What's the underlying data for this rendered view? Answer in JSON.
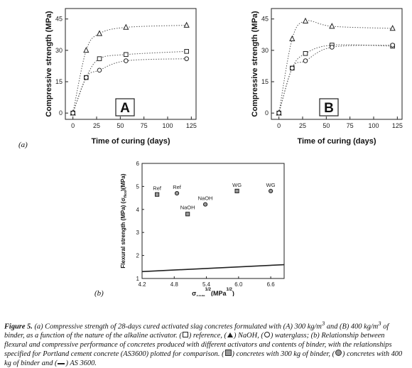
{
  "chart_data": [
    {
      "type": "scatter",
      "panel_letter": "A",
      "xlabel": "Time of curing (days)",
      "ylabel": "Compressive strength (MPa)",
      "xlim": [
        -8,
        130
      ],
      "ylim": [
        -3,
        50
      ],
      "xticks": [
        "0",
        "25",
        "50",
        "75",
        "100",
        "125"
      ],
      "yticks": [
        "0",
        "15",
        "30",
        "45"
      ],
      "grid": false,
      "series": [
        {
          "marker": "triangle",
          "x": [
            0,
            14,
            28,
            56,
            120
          ],
          "y": [
            0,
            30,
            38,
            41,
            42
          ]
        },
        {
          "marker": "square",
          "x": [
            0,
            14,
            28,
            56,
            120
          ],
          "y": [
            0,
            17,
            26,
            28,
            29.5
          ]
        },
        {
          "marker": "circle",
          "x": [
            0,
            14,
            28,
            56,
            120
          ],
          "y": [
            0,
            17,
            20.5,
            25,
            26
          ]
        }
      ]
    },
    {
      "type": "scatter",
      "panel_letter": "B",
      "xlabel": "Time of curing (days)",
      "ylabel": "Compressive strength (MPa)",
      "xlim": [
        -8,
        130
      ],
      "ylim": [
        -3,
        50
      ],
      "xticks": [
        "0",
        "25",
        "50",
        "75",
        "100",
        "125"
      ],
      "yticks": [
        "0",
        "15",
        "30",
        "45"
      ],
      "grid": false,
      "series": [
        {
          "marker": "triangle",
          "x": [
            0,
            14,
            28,
            56,
            120
          ],
          "y": [
            0,
            35.5,
            44,
            41.5,
            40.5
          ]
        },
        {
          "marker": "square",
          "x": [
            0,
            14,
            28,
            56,
            120
          ],
          "y": [
            0,
            21.5,
            28.5,
            32.5,
            32
          ]
        },
        {
          "marker": "circle",
          "x": [
            0,
            14,
            28,
            56,
            120
          ],
          "y": [
            0,
            21.5,
            25,
            31.5,
            32.5
          ]
        }
      ]
    },
    {
      "type": "scatter",
      "xlabel_main": "σ",
      "xlabel_sub": "com",
      "xlabel_sup": "1/2",
      "xlabel_rest": "(MPa",
      "xlabel_sup2": "1/2",
      "xlabel_end": ")",
      "ylabel": "Flexural strength (MPa) (σ",
      "ylabel_sub": "flex",
      "ylabel_end": ")(MPa)",
      "xlim": [
        4.2,
        6.85
      ],
      "ylim": [
        1,
        6
      ],
      "xticks": [
        "4.2",
        "4.8",
        "5.4",
        "6.0",
        "6.6"
      ],
      "yticks": [
        "1",
        "2",
        "3",
        "4",
        "5",
        "6"
      ],
      "points": [
        {
          "marker": "square",
          "x": 4.48,
          "y": 4.65,
          "label": "Ref"
        },
        {
          "marker": "circle",
          "x": 4.85,
          "y": 4.7,
          "label": "Ref"
        },
        {
          "marker": "square",
          "x": 5.05,
          "y": 3.8,
          "label": "NaOH"
        },
        {
          "marker": "circle",
          "x": 5.38,
          "y": 4.22,
          "label": "NaOH"
        },
        {
          "marker": "square",
          "x": 5.97,
          "y": 4.8,
          "label": "WG"
        },
        {
          "marker": "circle",
          "x": 6.6,
          "y": 4.8,
          "label": "WG"
        }
      ],
      "line": {
        "x": [
          4.2,
          6.85
        ],
        "y": [
          1.3,
          1.6
        ]
      }
    }
  ],
  "labels": {
    "panel_a": "(a)",
    "panel_b": "(b)"
  },
  "caption": {
    "fig": "Figure 5.",
    "p1": " (a) Compressive strength of 28-days cured activated slag concretes formulated with (A) 300 kg/m",
    "sup1": "3",
    "p2": " and (B) 400 kg/m",
    "sup2": "3",
    "p3": " of binder, as a function of the nature of the alkaline activator. (",
    "p4": ") reference, (",
    "p5": ") NaOH, (",
    "p6": ") waterglass;  (b) Relationship between flexural and compressive performance of concretes produced with different activators and contents of binder, with the relationships specified for Portland cement concrete (AS3600) plotted for comparison. (",
    "p7": ") concretes with 300 kg of binder, (",
    "p8": ") concretes with 400 kg of binder and (",
    "p9": ") AS 3600."
  }
}
